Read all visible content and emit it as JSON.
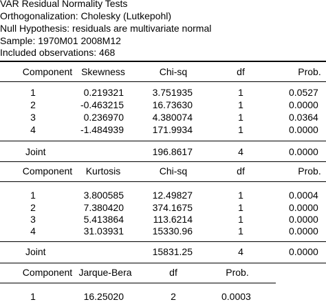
{
  "header": {
    "title": "VAR Residual Normality Tests",
    "orthogonalization": "Orthogonalization: Cholesky (Lutkepohl)",
    "null_hypothesis": "Null Hypothesis: residuals are multivariate normal",
    "sample": "Sample: 1970M01 2008M12",
    "observations": "Included observations: 468"
  },
  "skewness_table": {
    "headers": [
      "Component",
      "Skewness",
      "Chi-sq",
      "df",
      "Prob."
    ],
    "rows": [
      [
        "1",
        "0.219321",
        "3.751935",
        "1",
        "0.0527"
      ],
      [
        "2",
        "-0.463215",
        "16.73630",
        "1",
        "0.0000"
      ],
      [
        "3",
        "0.236970",
        "4.380074",
        "1",
        "0.0364"
      ],
      [
        "4",
        "-1.484939",
        "171.9934",
        "1",
        "0.0000"
      ]
    ],
    "joint": {
      "label": "Joint",
      "chisq": "196.8617",
      "df": "4",
      "prob": "0.0000"
    }
  },
  "kurtosis_table": {
    "headers": [
      "Component",
      "Kurtosis",
      "Chi-sq",
      "df",
      "Prob."
    ],
    "rows": [
      [
        "1",
        "3.800585",
        "12.49827",
        "1",
        "0.0004"
      ],
      [
        "2",
        "7.380420",
        "374.1675",
        "1",
        "0.0000"
      ],
      [
        "3",
        "5.413864",
        "113.6214",
        "1",
        "0.0000"
      ],
      [
        "4",
        "31.03931",
        "15330.96",
        "1",
        "0.0000"
      ]
    ],
    "joint": {
      "label": "Joint",
      "chisq": "15831.25",
      "df": "4",
      "prob": "0.0000"
    }
  },
  "jb_table": {
    "headers": [
      "Component",
      "Jarque-Bera",
      "df",
      "Prob."
    ],
    "rows": [
      [
        "1",
        "16.25020",
        "2",
        "0.0003"
      ]
    ]
  }
}
